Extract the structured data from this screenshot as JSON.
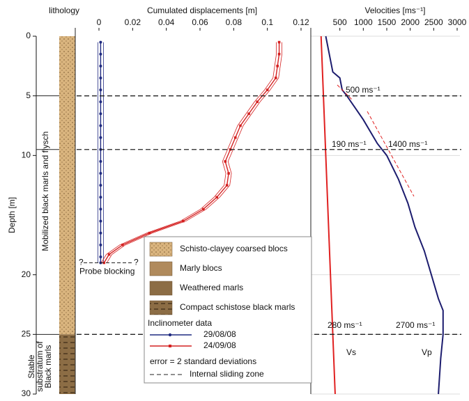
{
  "lithology": {
    "title": "lithology",
    "upper_label": "Mobilized black marls and flysch",
    "lower_label": [
      "Stable",
      "substratum of",
      "Black marls"
    ]
  },
  "depth_axis": {
    "title": "Depth [m]",
    "ylim": [
      0,
      30
    ],
    "yticks": [
      0,
      5,
      10,
      20,
      25,
      30
    ]
  },
  "sliding_zones": [
    5,
    9.5,
    25
  ],
  "probe": {
    "text": "Probe blocking",
    "marks": [
      "?",
      "?"
    ]
  },
  "legend": {
    "items": [
      "Schisto-clayey coarsed blocs",
      "Marly blocs",
      "Weathered marls",
      "Compact schistose black marls"
    ],
    "inclinometer_title": "Inclinometer data",
    "error_note": "error = 2 standard deviations",
    "sliding_label": "Internal sliding zone"
  },
  "chart_data": [
    {
      "type": "line",
      "title": "Cumulated displacements [m]",
      "xlim": [
        0,
        0.12
      ],
      "xticks": [
        0,
        0.02,
        0.04,
        0.06,
        0.08,
        0.1,
        0.12
      ],
      "series": [
        {
          "name": "29/08/08",
          "color": "#1f2a80",
          "depths": [
            0.5,
            1.5,
            2.5,
            3.5,
            4.5,
            5.5,
            6.5,
            7.5,
            8.5,
            9.5,
            10.5,
            11.5,
            12.5,
            13.5,
            14.5,
            15.5,
            16.5,
            17.5,
            18.5,
            19
          ],
          "values": [
            0.001,
            0.001,
            0.001,
            0.001,
            0.001,
            0.001,
            0.001,
            0.001,
            0.001,
            0.001,
            0.001,
            0.001,
            0.001,
            0.001,
            0.001,
            0.001,
            0.001,
            0.001,
            0.001,
            0.001
          ]
        },
        {
          "name": "24/09/08",
          "color": "#d42020",
          "depths": [
            0.5,
            1.5,
            2.5,
            3.5,
            4.5,
            5.5,
            6.5,
            7.5,
            8.5,
            9.5,
            10.5,
            11.5,
            12.5,
            13.5,
            14.5,
            15.5,
            16.5,
            17.5,
            18.3,
            19
          ],
          "values": [
            0.107,
            0.107,
            0.106,
            0.105,
            0.1,
            0.094,
            0.089,
            0.084,
            0.081,
            0.078,
            0.075,
            0.077,
            0.076,
            0.07,
            0.062,
            0.05,
            0.03,
            0.014,
            0.006,
            0.003
          ]
        }
      ]
    },
    {
      "type": "line",
      "title": "Velocities [ms⁻¹]",
      "xlim": [
        0,
        3000
      ],
      "xticks": [
        500,
        1000,
        1500,
        2000,
        2500,
        3000
      ],
      "series": [
        {
          "name": "Vs",
          "color": "#e02020",
          "depths": [
            0,
            10,
            20,
            30
          ],
          "values": [
            100,
            200,
            300,
            400
          ]
        },
        {
          "name": "Vp",
          "color": "#1c1c6e",
          "depths": [
            0,
            3,
            3.5,
            4.5,
            5,
            7,
            9,
            10,
            12,
            14,
            16,
            18,
            20,
            22,
            23,
            25,
            27,
            30
          ],
          "values": [
            200,
            350,
            500,
            550,
            650,
            1000,
            1300,
            1500,
            1750,
            1950,
            2100,
            2300,
            2450,
            2600,
            2700,
            2700,
            2650,
            2600
          ]
        }
      ],
      "annotations": [
        "500 ms⁻¹",
        "190 ms⁻¹",
        "1400 ms⁻¹",
        "280 ms⁻¹",
        "2700 ms⁻¹"
      ]
    }
  ]
}
